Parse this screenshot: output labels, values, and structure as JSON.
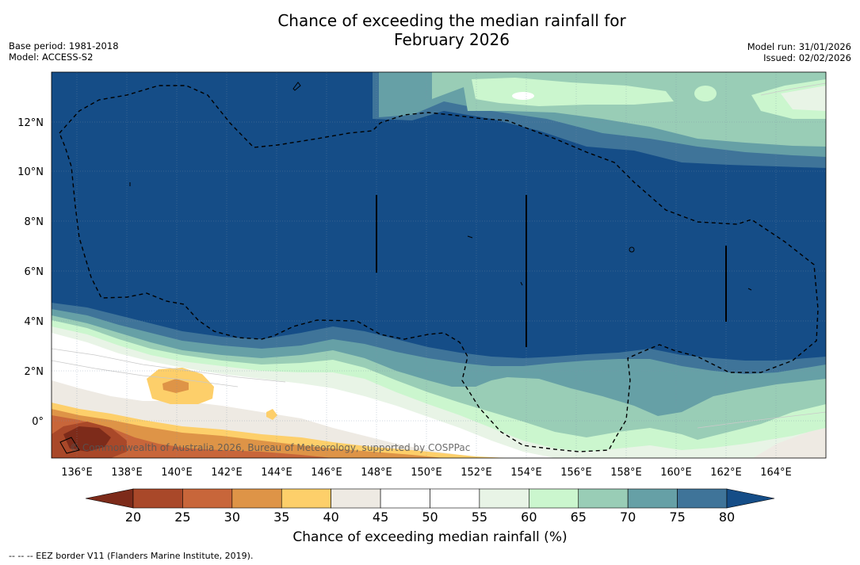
{
  "title": {
    "line1": "Chance of exceeding the median rainfall for",
    "line2": "February 2026"
  },
  "meta": {
    "base_period": "Base period: 1981-2018",
    "model": "Model: ACCESS-S2",
    "model_run": "Model run: 31/01/2026",
    "issued": "Issued: 02/02/2026"
  },
  "map": {
    "lon_range": [
      135,
      166
    ],
    "lat_range": [
      -1.5,
      14
    ],
    "lon_ticks": [
      "136°E",
      "138°E",
      "140°E",
      "142°E",
      "144°E",
      "146°E",
      "148°E",
      "150°E",
      "152°E",
      "154°E",
      "156°E",
      "158°E",
      "160°E",
      "162°E",
      "164°E"
    ],
    "lat_ticks": [
      "12°N",
      "10°N",
      "8°N",
      "6°N",
      "4°N",
      "2°N",
      "0°"
    ],
    "credit": "© Commonwealth of Australia 2026, Bureau of Meteorology, supported by COSPPac"
  },
  "colorbar": {
    "ticks": [
      "20",
      "25",
      "30",
      "35",
      "40",
      "45",
      "50",
      "55",
      "60",
      "65",
      "70",
      "75",
      "80"
    ],
    "colors": [
      "#7d2b1a",
      "#a94829",
      "#c8663a",
      "#de9447",
      "#fdcf6a",
      "#eeeae3",
      "#ffffff",
      "#ffffff",
      "#e8f4e6",
      "#cbf6ce",
      "#99cdb6",
      "#66a0a6",
      "#3f7499",
      "#154d87"
    ],
    "title": "Chance of exceeding median rainfall (%)"
  },
  "legend": {
    "eez": "--  --  -- EEZ border V11 (Flanders Marine Institute, 2019)."
  }
}
